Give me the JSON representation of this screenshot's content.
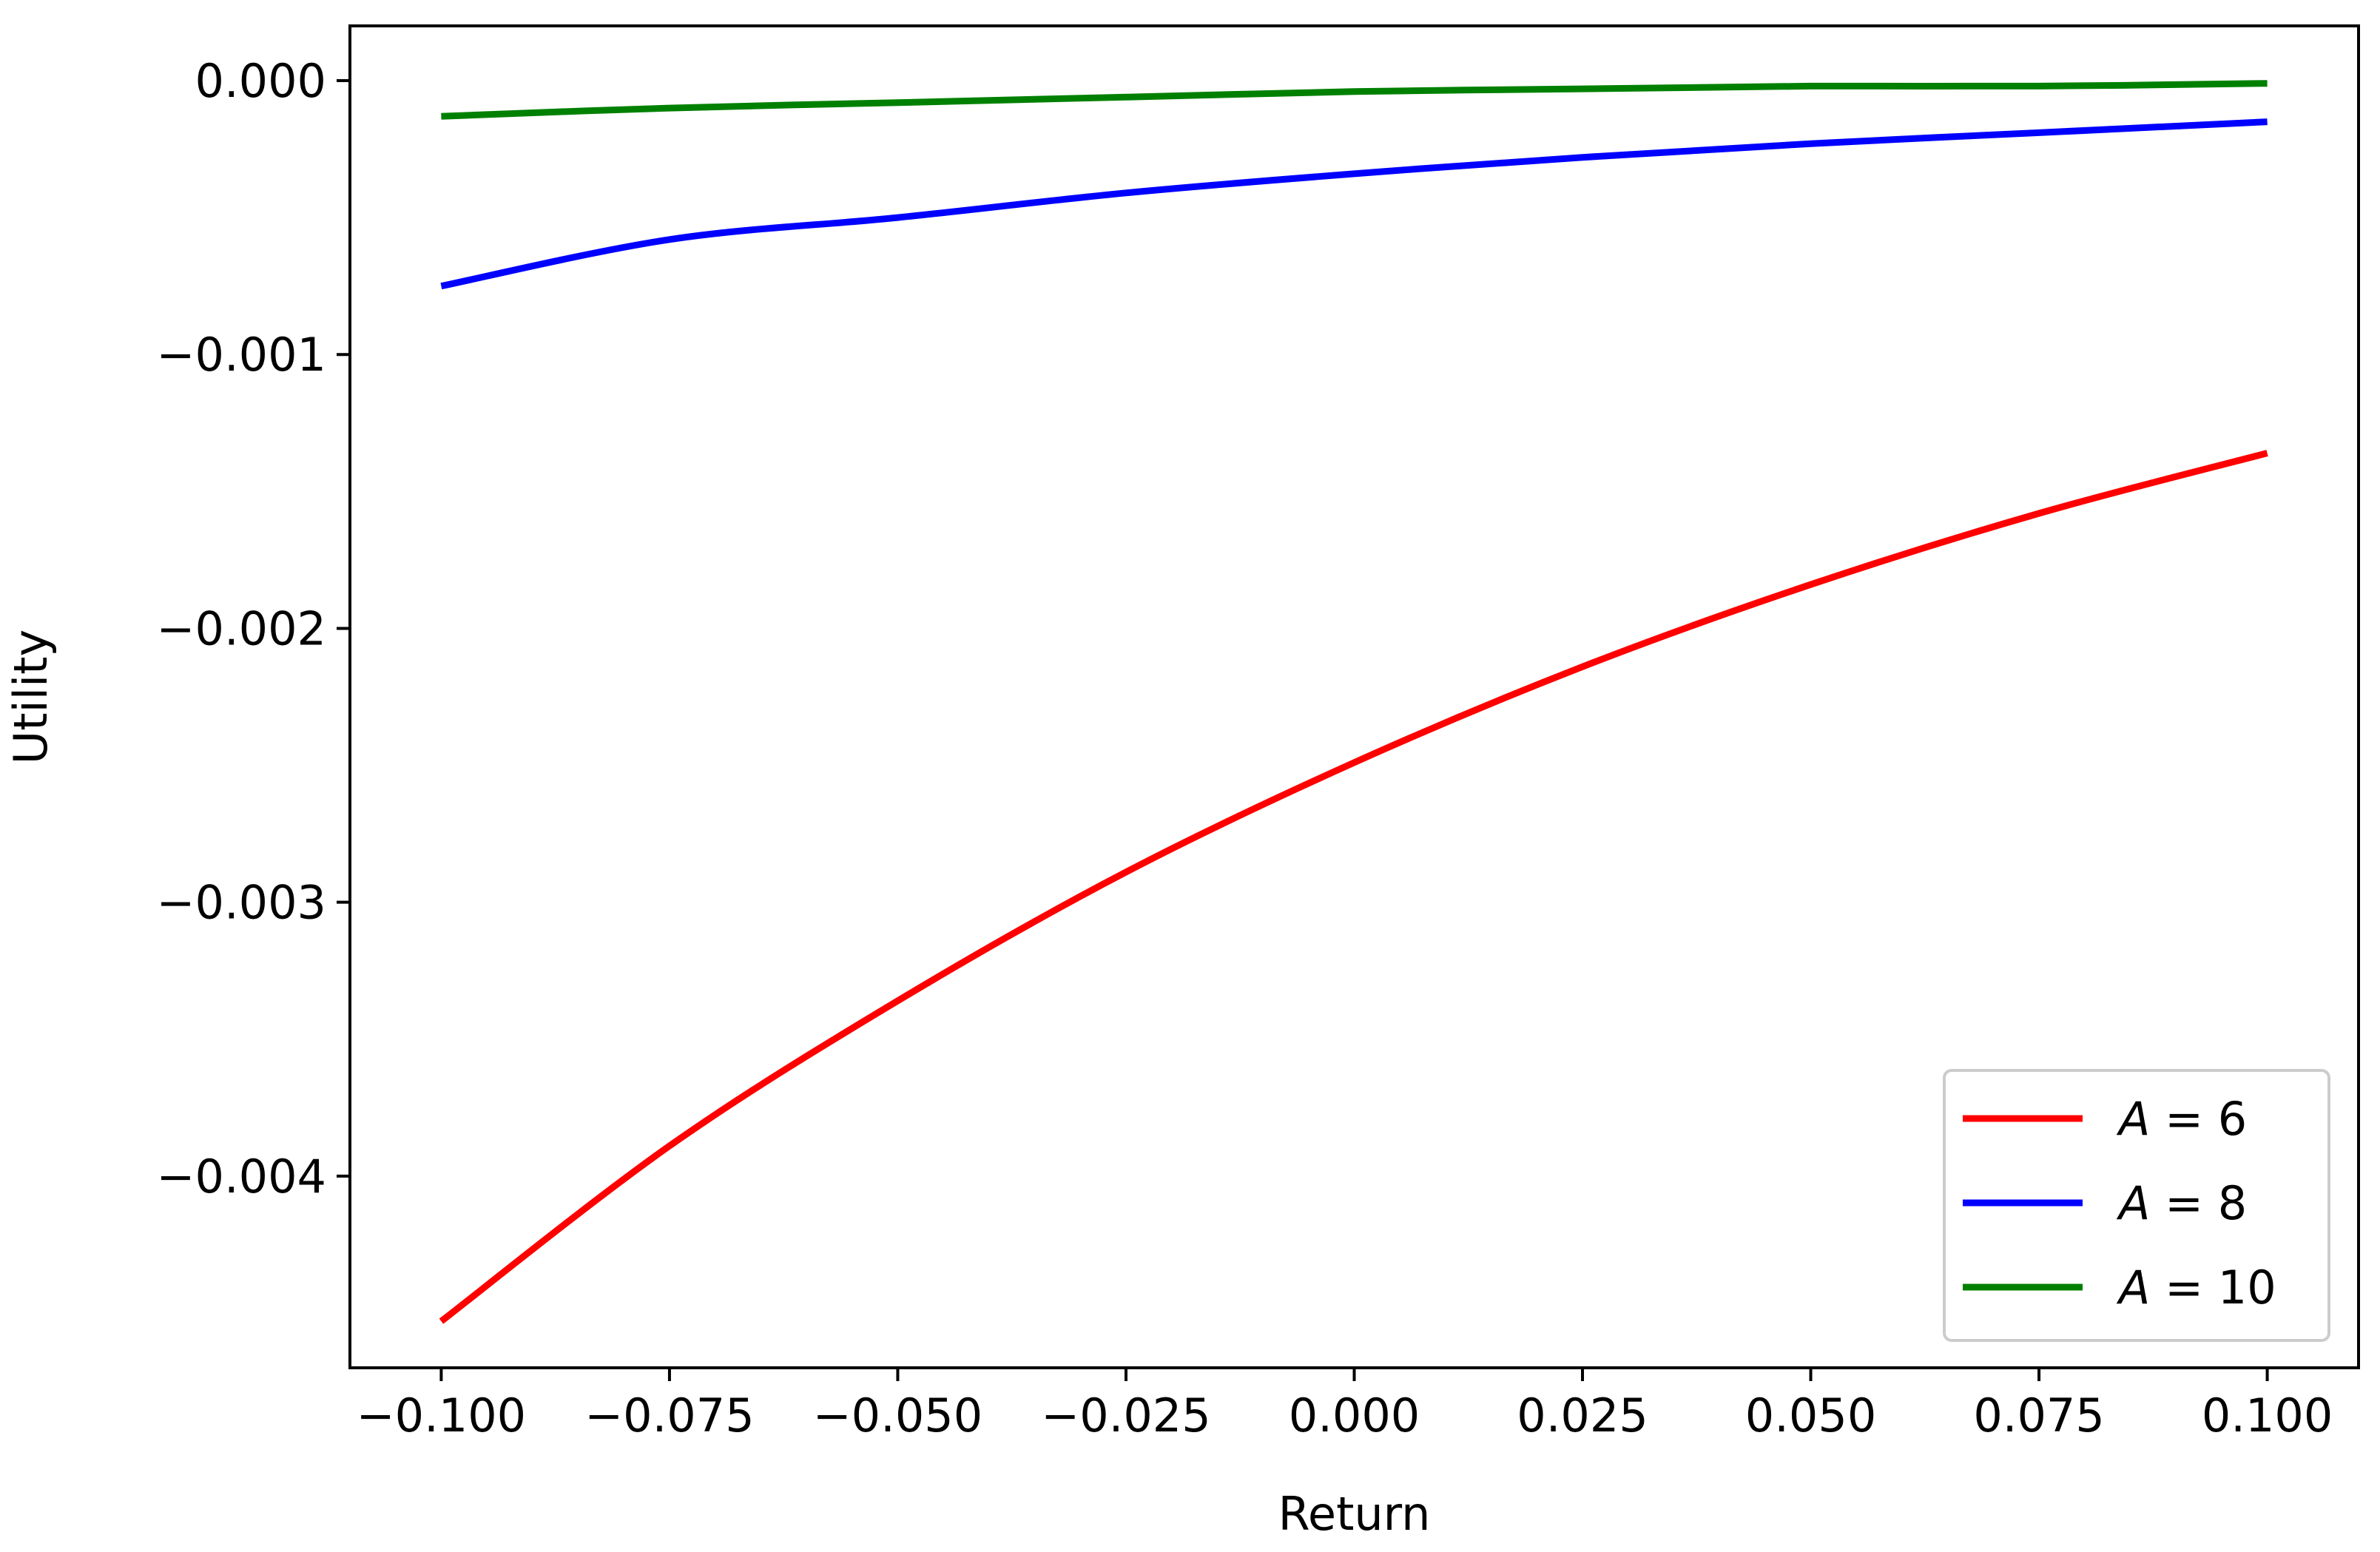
{
  "chart_data": {
    "type": "line",
    "title": "",
    "xlabel": "Return",
    "ylabel": "Utility",
    "xlim": [
      -0.11,
      0.11
    ],
    "ylim": [
      -0.0047,
      0.0002
    ],
    "grid": false,
    "legend_position": "lower-right",
    "x_ticks": [
      -0.1,
      -0.075,
      -0.05,
      -0.025,
      0.0,
      0.025,
      0.05,
      0.075,
      0.1
    ],
    "x_tick_labels": [
      "−0.100",
      "−0.075",
      "−0.050",
      "−0.025",
      "0.000",
      "0.025",
      "0.050",
      "0.075",
      "0.100"
    ],
    "y_ticks": [
      0.0,
      -0.001,
      -0.002,
      -0.003,
      -0.004
    ],
    "y_tick_labels": [
      "0.000",
      "−0.001",
      "−0.002",
      "−0.003",
      "−0.004"
    ],
    "x": [
      -0.1,
      -0.075,
      -0.05,
      -0.025,
      0.0,
      0.025,
      0.05,
      0.075,
      0.1
    ],
    "series": [
      {
        "name": "A = 6",
        "legend_var": "A",
        "legend_value": "6",
        "color": "#ff0000",
        "values": [
          -0.00453,
          -0.00389,
          -0.00336,
          -0.00289,
          -0.00249,
          -0.00214,
          -0.00184,
          -0.00158,
          -0.00136
        ]
      },
      {
        "name": "A = 8",
        "legend_var": "A",
        "legend_value": "8",
        "color": "#0000ff",
        "values": [
          -0.00075,
          -0.00058,
          -0.0005,
          -0.00041,
          -0.00034,
          -0.00028,
          -0.00023,
          -0.00019,
          -0.00015
        ]
      },
      {
        "name": "A = 10",
        "legend_var": "A",
        "legend_value": "10",
        "color": "#008000",
        "values": [
          -0.00013,
          -0.0001,
          -8e-05,
          -6e-05,
          -4e-05,
          -3e-05,
          -2e-05,
          -2e-05,
          -1e-05
        ]
      }
    ]
  }
}
